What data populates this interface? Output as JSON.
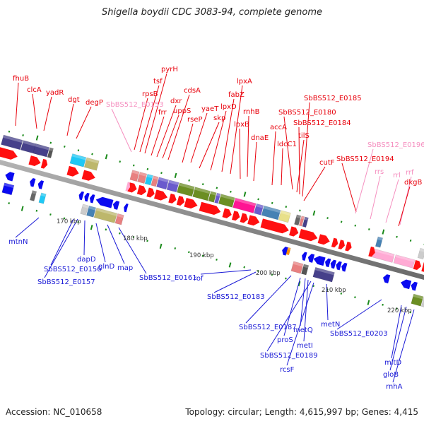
{
  "title": "Shigella boydii CDC 3083-94, complete genome",
  "footer": {
    "accession": "Accession: NC_010658",
    "summary": "Topology: circular; Length: 4,615,997 bp; Genes: 4,415"
  },
  "colors": {
    "forward_label": "#e8000b",
    "forward_rna_label": "#f590c0",
    "reverse_label": "#1a1ad6",
    "backbone": "#888888",
    "tick": "#1a8a1a"
  },
  "ruler": [
    {
      "label": "170 kbp"
    },
    {
      "label": "180 kbp"
    },
    {
      "label": "190 kbp"
    },
    {
      "label": "200 kbp"
    },
    {
      "label": "210 kbp"
    },
    {
      "label": "220 kbp"
    }
  ],
  "top_labels": [
    {
      "text": "fhuB",
      "kind": "cds"
    },
    {
      "text": "clcA",
      "kind": "cds"
    },
    {
      "text": "yadR",
      "kind": "cds"
    },
    {
      "text": "dgt",
      "kind": "cds"
    },
    {
      "text": "degP",
      "kind": "cds"
    },
    {
      "text": "SbBS512_E0153",
      "kind": "rna"
    },
    {
      "text": "rpsB",
      "kind": "cds"
    },
    {
      "text": "tsf",
      "kind": "cds"
    },
    {
      "text": "pyrH",
      "kind": "cds"
    },
    {
      "text": "frr",
      "kind": "cds"
    },
    {
      "text": "dxr",
      "kind": "cds"
    },
    {
      "text": "uppS",
      "kind": "cds"
    },
    {
      "text": "cdsA",
      "kind": "cds"
    },
    {
      "text": "rseP",
      "kind": "cds"
    },
    {
      "text": "yaeT",
      "kind": "cds"
    },
    {
      "text": "skp",
      "kind": "cds"
    },
    {
      "text": "lpxD",
      "kind": "cds"
    },
    {
      "text": "fabZ",
      "kind": "cds"
    },
    {
      "text": "lpxA",
      "kind": "cds"
    },
    {
      "text": "lpxB",
      "kind": "cds"
    },
    {
      "text": "rnhB",
      "kind": "cds"
    },
    {
      "text": "dnaE",
      "kind": "cds"
    },
    {
      "text": "accA",
      "kind": "cds"
    },
    {
      "text": "ldcC1",
      "kind": "cds"
    },
    {
      "text": "SbBS512_E0180",
      "kind": "cds"
    },
    {
      "text": "tilS",
      "kind": "cds"
    },
    {
      "text": "SbBS512_E0184",
      "kind": "cds"
    },
    {
      "text": "SbBS512_E0185",
      "kind": "cds"
    },
    {
      "text": "cutF",
      "kind": "cds"
    },
    {
      "text": "SbBS512_E0194",
      "kind": "cds"
    },
    {
      "text": "SbBS512_E0196",
      "kind": "rna"
    },
    {
      "text": "rrs",
      "kind": "rna"
    },
    {
      "text": "rrl",
      "kind": "rna"
    },
    {
      "text": "rrf",
      "kind": "rna"
    },
    {
      "text": "dkgB",
      "kind": "cds"
    }
  ],
  "bottom_labels": [
    {
      "text": "mtnN"
    },
    {
      "text": "SbBS512_E0156"
    },
    {
      "text": "SbBS512_E0157"
    },
    {
      "text": "dapD"
    },
    {
      "text": "glnD"
    },
    {
      "text": "map"
    },
    {
      "text": "SbBS512_E0161"
    },
    {
      "text": "rof"
    },
    {
      "text": "SbBS512_E0183"
    },
    {
      "text": "SbBS512_E0187"
    },
    {
      "text": "proS"
    },
    {
      "text": "metQ"
    },
    {
      "text": "metI"
    },
    {
      "text": "SbBS512_E0189"
    },
    {
      "text": "rcsF"
    },
    {
      "text": "metN"
    },
    {
      "text": "SbBS512_E0203"
    },
    {
      "text": "mltD"
    },
    {
      "text": "gloB"
    },
    {
      "text": "rnhA"
    }
  ]
}
